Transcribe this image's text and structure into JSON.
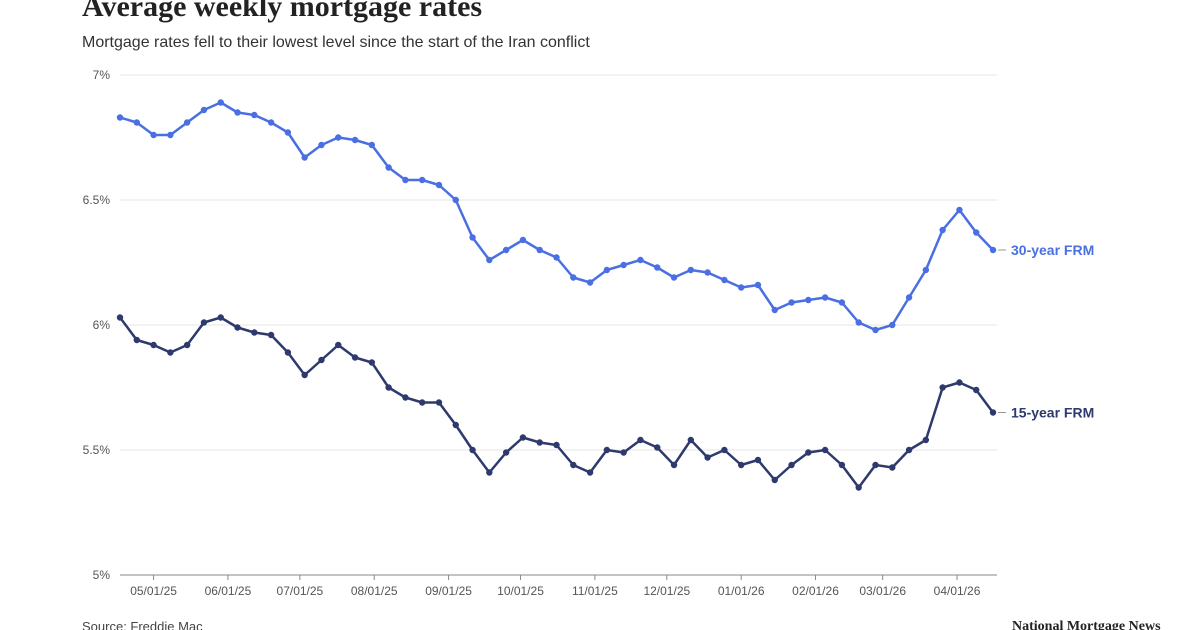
{
  "chart_data": {
    "type": "line",
    "title": "Average weekly mortgage rates",
    "subtitle": "Mortgage rates fell to their lowest level since the start of the Iran conflict",
    "source": "Source: Freddie Mac",
    "brand": "National Mortgage News",
    "x": [
      "04/17/25",
      "04/24/25",
      "05/01/25",
      "05/08/25",
      "05/15/25",
      "05/22/25",
      "05/29/25",
      "06/05/25",
      "06/12/25",
      "06/19/25",
      "06/26/25",
      "07/03/25",
      "07/10/25",
      "07/17/25",
      "07/24/25",
      "07/31/25",
      "08/07/25",
      "08/14/25",
      "08/21/25",
      "08/28/25",
      "09/04/25",
      "09/11/25",
      "09/18/25",
      "09/25/25",
      "10/02/25",
      "10/09/25",
      "10/16/25",
      "10/23/25",
      "10/30/25",
      "11/06/25",
      "11/13/25",
      "11/20/25",
      "11/27/25",
      "12/04/25",
      "12/11/25",
      "12/18/25",
      "12/25/25",
      "01/01/26",
      "01/08/26",
      "01/15/26",
      "01/22/26",
      "01/29/26",
      "02/05/26",
      "02/12/26",
      "02/19/26",
      "02/26/26",
      "03/05/26",
      "03/12/26",
      "03/19/26",
      "03/26/26",
      "04/02/26",
      "04/09/26",
      "04/16/26"
    ],
    "xlim": [
      "04/17/25",
      "04/16/26"
    ],
    "xticks": [
      "05/01/25",
      "06/01/25",
      "07/01/25",
      "08/01/25",
      "09/01/25",
      "10/01/25",
      "11/01/25",
      "12/01/25",
      "01/01/26",
      "02/01/26",
      "03/01/26",
      "04/01/26"
    ],
    "ylim": [
      5,
      7
    ],
    "yticks": [
      {
        "value": 5,
        "label": "5%"
      },
      {
        "value": 5.5,
        "label": "5.5%"
      },
      {
        "value": 6,
        "label": "6%"
      },
      {
        "value": 6.5,
        "label": "6.5%"
      },
      {
        "value": 7,
        "label": "7%"
      }
    ],
    "grid": true,
    "series": [
      {
        "name": "30-year FRM",
        "color": "#4a6fe3",
        "values": [
          6.83,
          6.81,
          6.76,
          6.76,
          6.81,
          6.86,
          6.89,
          6.85,
          6.84,
          6.81,
          6.77,
          6.67,
          6.72,
          6.75,
          6.74,
          6.72,
          6.63,
          6.58,
          6.58,
          6.56,
          6.5,
          6.35,
          6.26,
          6.3,
          6.34,
          6.3,
          6.27,
          6.19,
          6.17,
          6.22,
          6.24,
          6.26,
          6.23,
          6.19,
          6.22,
          6.21,
          6.18,
          6.15,
          6.16,
          6.06,
          6.09,
          6.1,
          6.11,
          6.09,
          6.01,
          5.98,
          6.0,
          6.11,
          6.22,
          6.38,
          6.46,
          6.37,
          6.3
        ]
      },
      {
        "name": "15-year FRM",
        "color": "#2e3a6e",
        "values": [
          6.03,
          5.94,
          5.92,
          5.89,
          5.92,
          6.01,
          6.03,
          5.99,
          5.97,
          5.96,
          5.89,
          5.8,
          5.86,
          5.92,
          5.87,
          5.85,
          5.75,
          5.71,
          5.69,
          5.69,
          5.6,
          5.5,
          5.41,
          5.49,
          5.55,
          5.53,
          5.52,
          5.44,
          5.41,
          5.5,
          5.49,
          5.54,
          5.51,
          5.44,
          5.54,
          5.47,
          5.5,
          5.44,
          5.46,
          5.38,
          5.44,
          5.49,
          5.5,
          5.44,
          5.35,
          5.44,
          5.43,
          5.5,
          5.54,
          5.75,
          5.77,
          5.74,
          5.65
        ]
      }
    ]
  }
}
